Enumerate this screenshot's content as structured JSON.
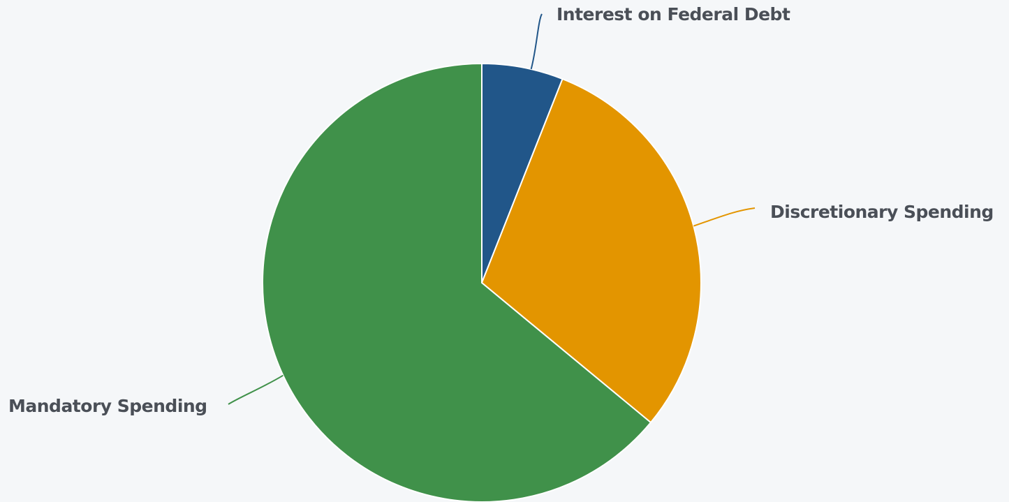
{
  "chart_data": {
    "type": "pie",
    "slices": [
      {
        "label": "Interest on Federal Debt",
        "value": 6,
        "color": "#215689"
      },
      {
        "label": "Discretionary Spending",
        "value": 30,
        "color": "#e39500"
      },
      {
        "label": "Mandatory Spending",
        "value": 64,
        "color": "#40914a"
      }
    ],
    "start_angle_deg": 0,
    "direction": "clockwise",
    "background": "#f5f7f9",
    "slice_border_color": "#ffffff",
    "label_color": "#4a4f57"
  }
}
